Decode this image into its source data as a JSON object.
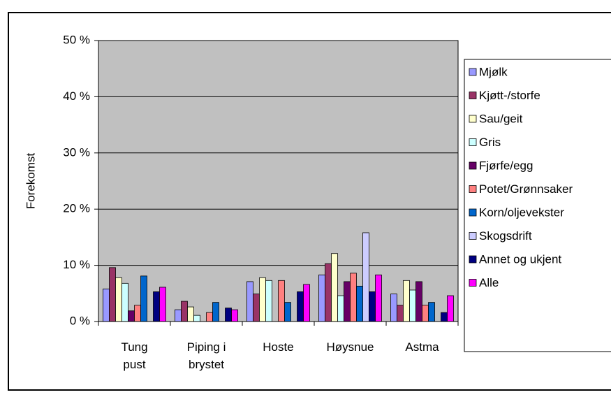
{
  "chart_data": {
    "type": "bar",
    "y_label": "Forekomst",
    "categories": [
      "Tung pust",
      "Piping i brystet",
      "Hoste",
      "Høysnue",
      "Astma"
    ],
    "series": [
      {
        "name": "Mjølk",
        "color": "#9999ff",
        "values": [
          5.8,
          2.1,
          7.1,
          8.3,
          4.9
        ]
      },
      {
        "name": "Kjøtt-/storfe",
        "color": "#993366",
        "values": [
          9.6,
          3.6,
          4.9,
          10.3,
          2.9
        ]
      },
      {
        "name": "Sau/geit",
        "color": "#ffffcc",
        "values": [
          7.8,
          2.6,
          7.8,
          12.1,
          7.3
        ]
      },
      {
        "name": "Gris",
        "color": "#ccffff",
        "values": [
          6.8,
          1.1,
          7.3,
          4.6,
          5.6
        ]
      },
      {
        "name": "Fjørfe/egg",
        "color": "#660066",
        "values": [
          1.9,
          0,
          0,
          7.1,
          7.1
        ]
      },
      {
        "name": "Potet/Grønnsaker",
        "color": "#ff8080",
        "values": [
          2.9,
          1.6,
          7.3,
          8.6,
          2.9
        ]
      },
      {
        "name": "Korn/oljevekster",
        "color": "#0066cc",
        "values": [
          8.1,
          3.4,
          3.4,
          6.3,
          3.4
        ]
      },
      {
        "name": "Skogsdrift",
        "color": "#ccccff",
        "values": [
          0,
          0,
          0,
          15.8,
          0
        ]
      },
      {
        "name": "Annet og ukjent",
        "color": "#000080",
        "values": [
          5.3,
          2.4,
          5.3,
          5.3,
          1.6
        ]
      },
      {
        "name": "Alle",
        "color": "#ff00ff",
        "values": [
          6.1,
          2.1,
          6.6,
          8.3,
          4.6
        ]
      }
    ],
    "ylim": [
      0,
      50
    ],
    "yticks": [
      {
        "value": 0,
        "label": "0 %"
      },
      {
        "value": 10,
        "label": "10 %"
      },
      {
        "value": 20,
        "label": "20 %"
      },
      {
        "value": 30,
        "label": "30 %"
      },
      {
        "value": 40,
        "label": "40 %"
      },
      {
        "value": 50,
        "label": "50 %"
      }
    ],
    "grid": true,
    "plot_background": "#c0c0c0",
    "legend": "right"
  }
}
